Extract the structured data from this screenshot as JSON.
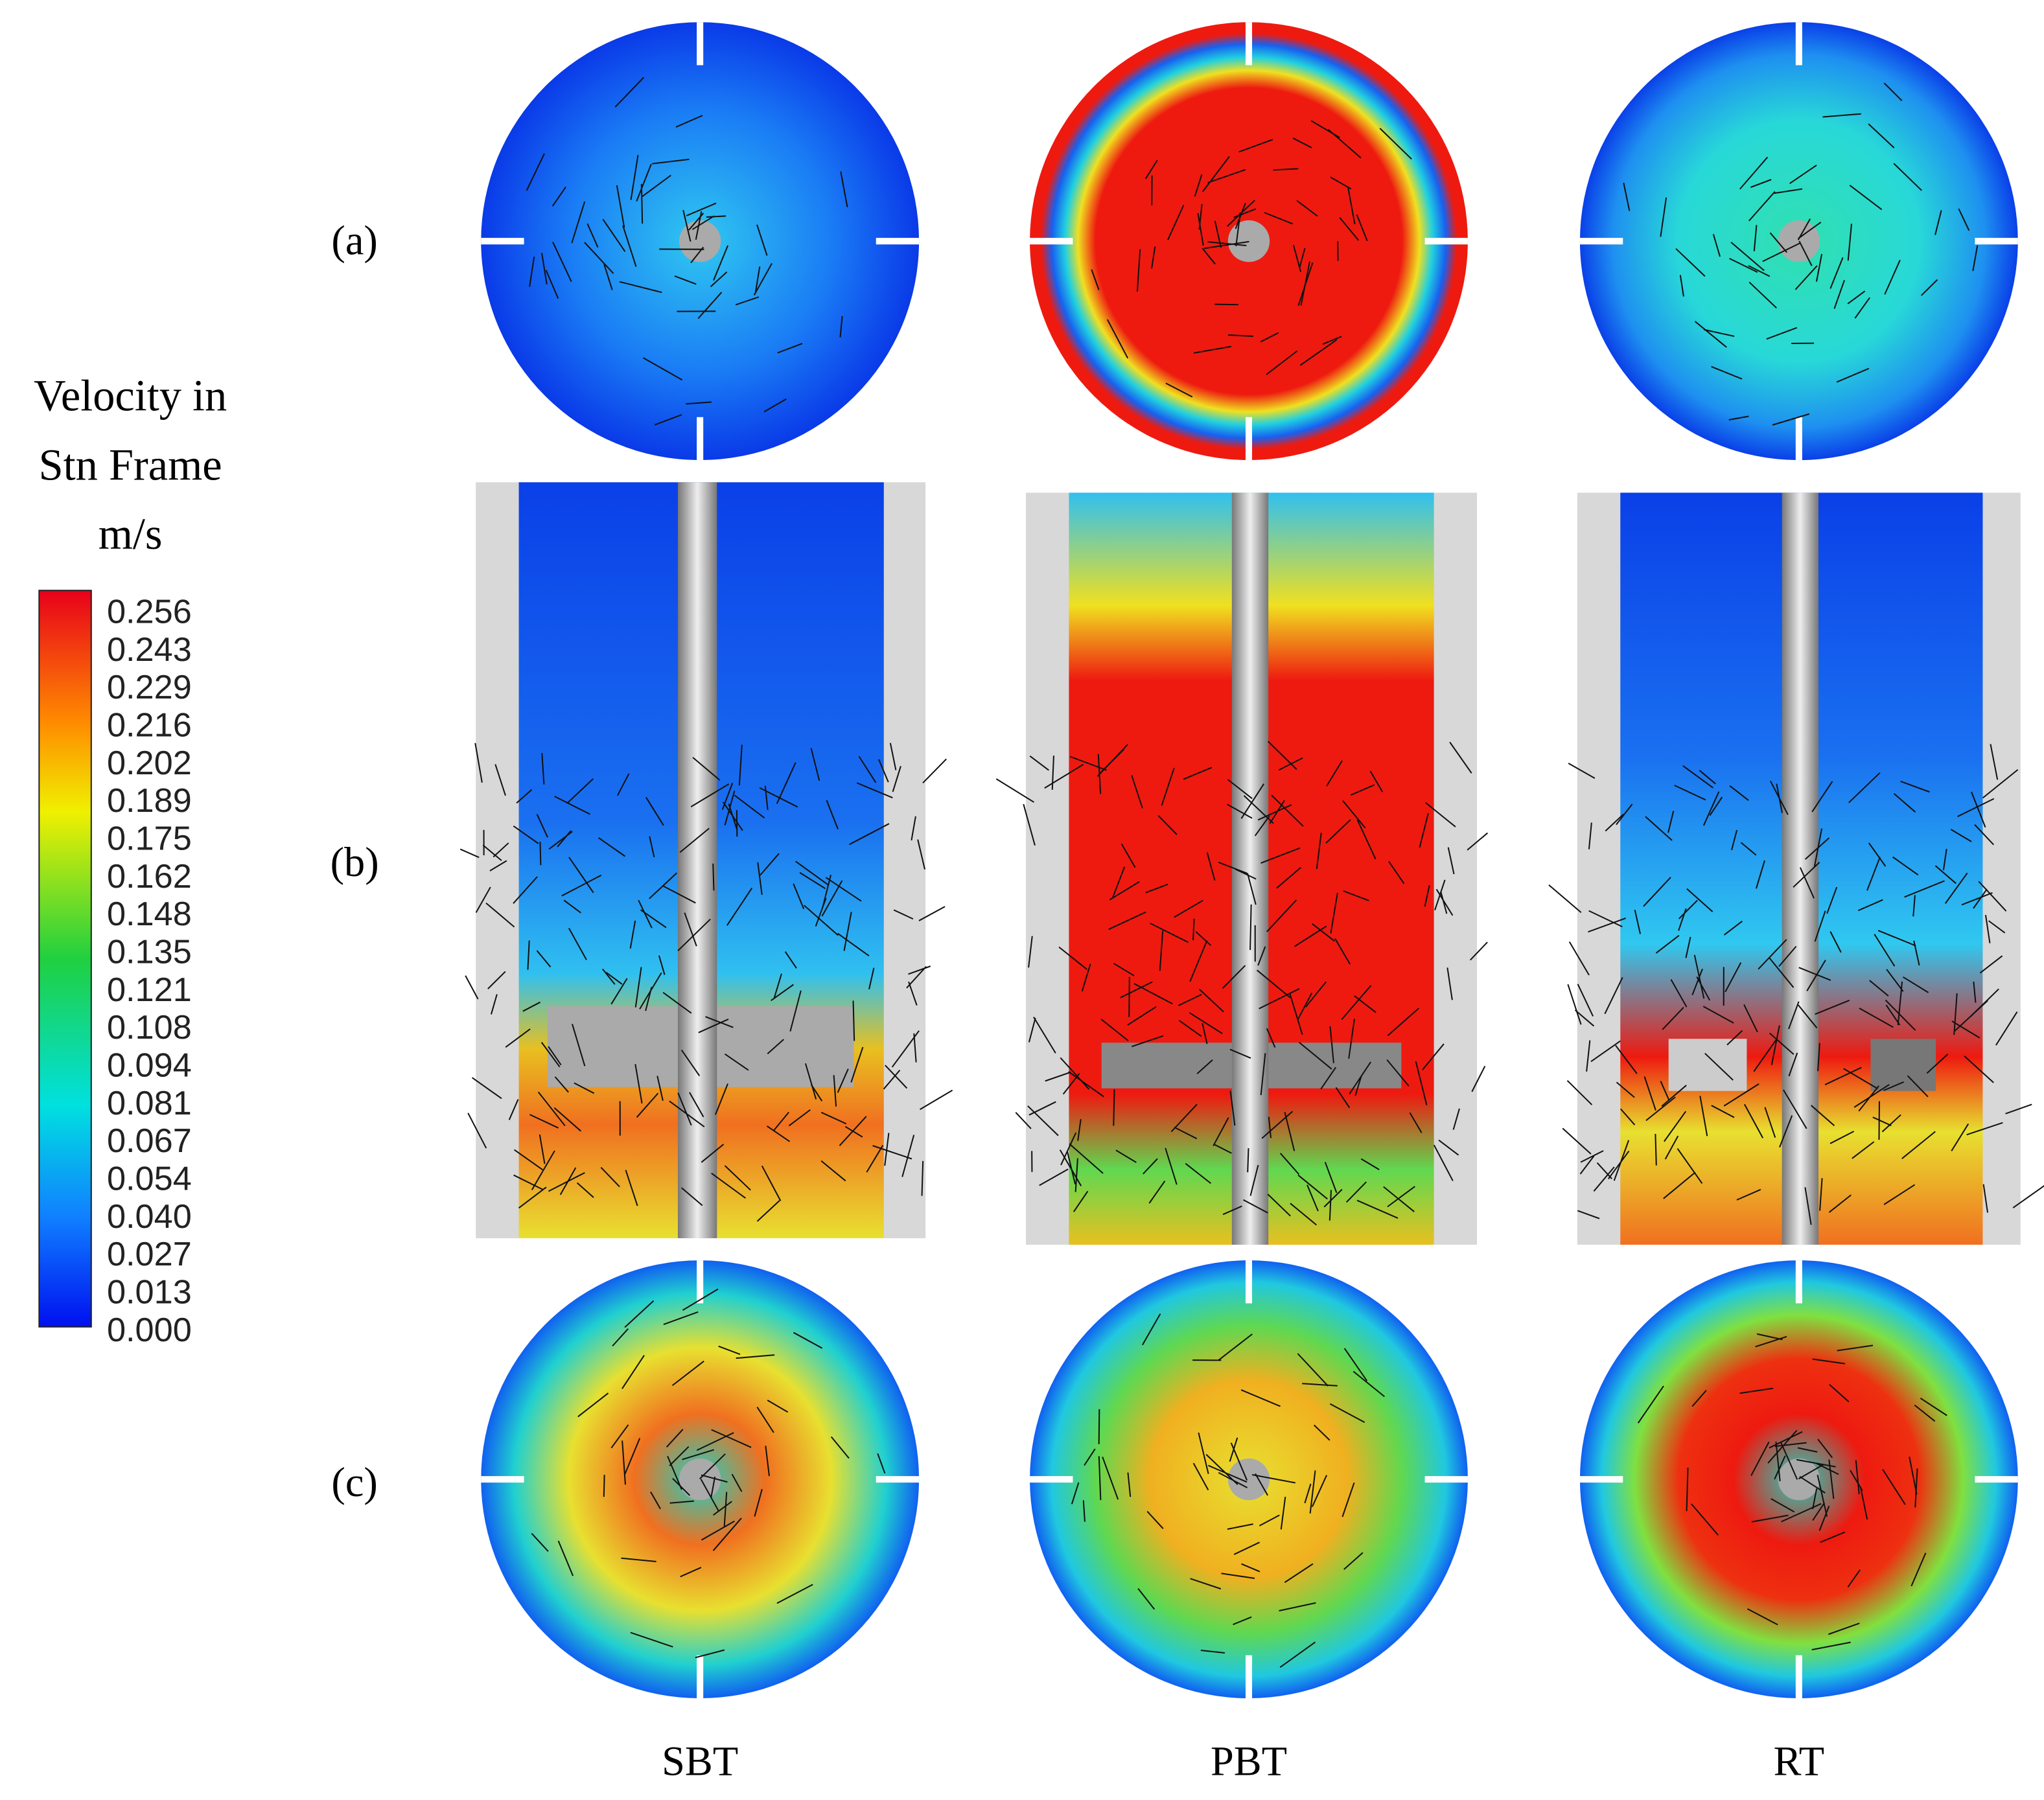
{
  "legend": {
    "title_lines": [
      "Velocity in",
      "Stn Frame",
      "m/s"
    ],
    "ticks": [
      "0.256",
      "0.243",
      "0.229",
      "0.216",
      "0.202",
      "0.189",
      "0.175",
      "0.162",
      "0.148",
      "0.135",
      "0.121",
      "0.108",
      "0.094",
      "0.081",
      "0.067",
      "0.054",
      "0.040",
      "0.027",
      "0.013",
      "0.000"
    ]
  },
  "rows": [
    "(a)",
    "(b)",
    "(c)"
  ],
  "columns": [
    "SBT",
    "PBT",
    "RT"
  ]
}
